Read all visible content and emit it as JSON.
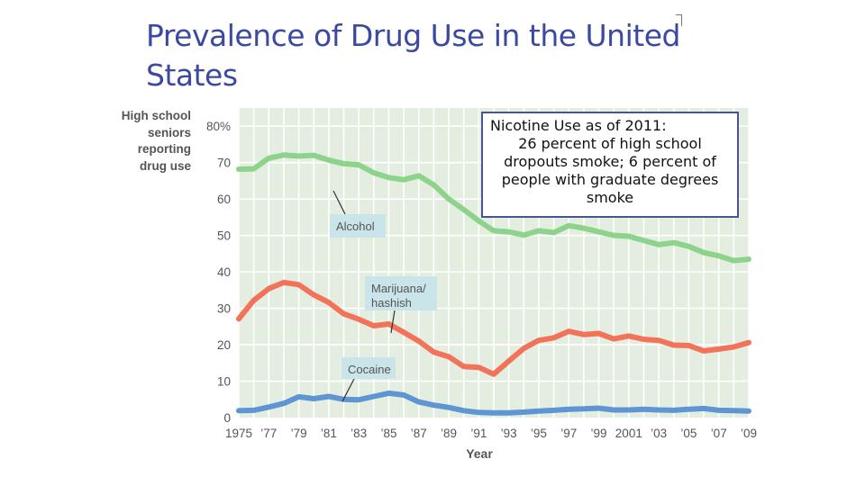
{
  "slide": {
    "title": "Prevalence of Drug Use in the United States"
  },
  "callout": {
    "heading": "Nicotine Use as of 2011:",
    "body": "26 percent of high school dropouts smoke; 6 percent of people with graduate degrees smoke"
  },
  "colors": {
    "title": "#3b4aa0",
    "plot_background": "#e3eee0",
    "grid": "#ffffff",
    "alcohol": "#8ed38c",
    "marijuana": "#f2735a",
    "cocaine": "#5f95d4",
    "label_box": "#c9e5ea"
  },
  "chart_data": {
    "type": "line",
    "ylabel_lines": [
      "High school",
      "seniors",
      "reporting",
      "drug use"
    ],
    "xlabel": "Year",
    "ylim": [
      0,
      85
    ],
    "xlim": [
      1975,
      2009
    ],
    "y_ticks": [
      {
        "value": 0,
        "label": "0"
      },
      {
        "value": 10,
        "label": "10"
      },
      {
        "value": 20,
        "label": "20"
      },
      {
        "value": 30,
        "label": "30"
      },
      {
        "value": 40,
        "label": "40"
      },
      {
        "value": 50,
        "label": "50"
      },
      {
        "value": 60,
        "label": "60"
      },
      {
        "value": 70,
        "label": "70"
      },
      {
        "value": 80,
        "label": "80%"
      }
    ],
    "x_ticks": [
      {
        "value": 1975,
        "label": "1975"
      },
      {
        "value": 1977,
        "label": "’77"
      },
      {
        "value": 1979,
        "label": "’79"
      },
      {
        "value": 1981,
        "label": "’81"
      },
      {
        "value": 1983,
        "label": "’83"
      },
      {
        "value": 1985,
        "label": "’85"
      },
      {
        "value": 1987,
        "label": "’87"
      },
      {
        "value": 1989,
        "label": "’89"
      },
      {
        "value": 1991,
        "label": "’91"
      },
      {
        "value": 1993,
        "label": "’93"
      },
      {
        "value": 1995,
        "label": "’95"
      },
      {
        "value": 1997,
        "label": "’97"
      },
      {
        "value": 1999,
        "label": "’99"
      },
      {
        "value": 2001,
        "label": "2001"
      },
      {
        "value": 2003,
        "label": "’03"
      },
      {
        "value": 2005,
        "label": "’05"
      },
      {
        "value": 2007,
        "label": "’07"
      },
      {
        "value": 2009,
        "label": "’09"
      }
    ],
    "x": [
      1975,
      1976,
      1977,
      1978,
      1979,
      1980,
      1981,
      1982,
      1983,
      1984,
      1985,
      1986,
      1987,
      1988,
      1989,
      1990,
      1991,
      1992,
      1993,
      1994,
      1995,
      1996,
      1997,
      1998,
      1999,
      2000,
      2001,
      2002,
      2003,
      2004,
      2005,
      2006,
      2007,
      2008,
      2009
    ],
    "series": [
      {
        "name": "Alcohol",
        "key": "alcohol",
        "values": [
          68.2,
          68.3,
          71.2,
          72.1,
          71.8,
          72.0,
          70.7,
          69.7,
          69.4,
          67.2,
          65.9,
          65.3,
          66.4,
          63.9,
          60.0,
          57.1,
          54.0,
          51.3,
          51.0,
          50.1,
          51.3,
          50.8,
          52.7,
          52.0,
          51.0,
          50.0,
          49.8,
          48.6,
          47.5,
          48.0,
          47.0,
          45.3,
          44.4,
          43.1,
          43.5
        ]
      },
      {
        "name": "Marijuana/ hashish",
        "key": "marijuana",
        "values": [
          27.1,
          32.2,
          35.4,
          37.1,
          36.5,
          33.7,
          31.6,
          28.5,
          27.0,
          25.2,
          25.7,
          23.4,
          21.0,
          18.0,
          16.7,
          14.0,
          13.8,
          11.9,
          15.5,
          19.0,
          21.2,
          21.9,
          23.7,
          22.8,
          23.1,
          21.6,
          22.4,
          21.5,
          21.2,
          19.9,
          19.8,
          18.3,
          18.8,
          19.4,
          20.6
        ]
      },
      {
        "name": "Cocaine",
        "key": "cocaine",
        "values": [
          1.9,
          2.0,
          2.9,
          3.9,
          5.7,
          5.2,
          5.8,
          5.0,
          4.9,
          5.8,
          6.7,
          6.2,
          4.3,
          3.4,
          2.8,
          1.9,
          1.4,
          1.3,
          1.3,
          1.5,
          1.8,
          2.0,
          2.3,
          2.4,
          2.6,
          2.1,
          2.1,
          2.3,
          2.1,
          2.0,
          2.3,
          2.5,
          2.0,
          1.9,
          1.8
        ]
      }
    ],
    "series_labels": [
      {
        "key": "alcohol",
        "lines": [
          "Alcohol"
        ]
      },
      {
        "key": "marijuana",
        "lines": [
          "Marijuana/",
          "hashish"
        ]
      },
      {
        "key": "cocaine",
        "lines": [
          "Cocaine"
        ]
      }
    ]
  }
}
